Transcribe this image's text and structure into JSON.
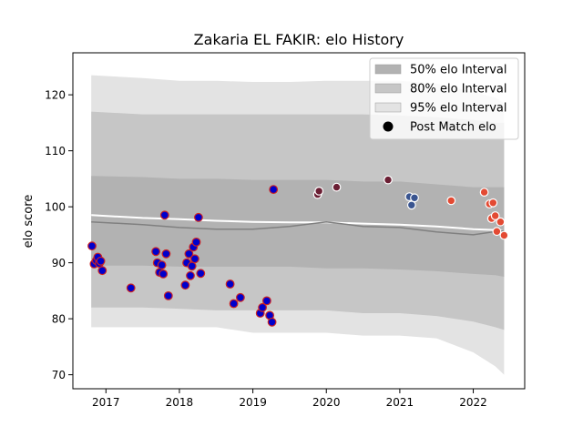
{
  "chart_data": {
    "type": "scatter",
    "title": "Zakaria EL FAKIR: elo History",
    "xlabel": "",
    "ylabel": "elo score",
    "xlim": [
      2016.55,
      2022.7
    ],
    "ylim": [
      67.5,
      127.5
    ],
    "x_ticks": [
      2017,
      2018,
      2019,
      2020,
      2021,
      2022
    ],
    "x_tick_labels": [
      "2017",
      "2018",
      "2019",
      "2020",
      "2021",
      "2022"
    ],
    "y_ticks": [
      70,
      80,
      90,
      100,
      110,
      120
    ],
    "y_tick_labels": [
      "70",
      "80",
      "90",
      "100",
      "110",
      "120"
    ],
    "grid": false,
    "legend_position": "top-right",
    "legend": [
      {
        "label": "50% elo Interval",
        "kind": "patch",
        "color": "#b2b2b2"
      },
      {
        "label": "80% elo Interval",
        "kind": "patch",
        "color": "#c6c6c6"
      },
      {
        "label": "95% elo Interval",
        "kind": "patch",
        "color": "#e3e3e3"
      },
      {
        "label": "Post Match elo",
        "kind": "marker",
        "color": "#000000"
      }
    ],
    "bands": [
      {
        "name": "95% elo Interval",
        "color": "#e3e3e3",
        "x": [
          2016.8,
          2017.5,
          2018.0,
          2018.5,
          2019.0,
          2019.5,
          2020.0,
          2020.5,
          2021.0,
          2021.5,
          2022.0,
          2022.3,
          2022.42
        ],
        "upper": [
          123.5,
          123,
          122.5,
          122.5,
          122.3,
          122.3,
          122.5,
          122.5,
          122.5,
          122,
          120.5,
          119.5,
          118.5
        ],
        "lower": [
          78.5,
          78.5,
          78.5,
          78.5,
          77.5,
          77.5,
          77.5,
          77,
          77,
          76.5,
          74,
          71.5,
          70
        ]
      },
      {
        "name": "80% elo Interval",
        "color": "#c6c6c6",
        "x": [
          2016.8,
          2017.5,
          2018.0,
          2018.5,
          2019.0,
          2019.5,
          2020.0,
          2020.5,
          2021.0,
          2021.5,
          2022.0,
          2022.3,
          2022.42
        ],
        "upper": [
          117,
          116.5,
          116.5,
          116.5,
          116.5,
          116.5,
          116.5,
          116.5,
          116.3,
          116,
          115.5,
          115,
          115
        ],
        "lower": [
          82,
          82,
          81.8,
          81.5,
          81.5,
          81.5,
          81.5,
          81,
          81,
          80.5,
          79.5,
          78.5,
          78
        ]
      },
      {
        "name": "50% elo Interval",
        "color": "#b2b2b2",
        "x": [
          2016.8,
          2017.5,
          2018.0,
          2018.5,
          2019.0,
          2019.5,
          2020.0,
          2020.5,
          2021.0,
          2021.5,
          2022.0,
          2022.3,
          2022.42
        ],
        "upper": [
          105.5,
          105.3,
          105,
          105,
          104.8,
          104.8,
          104.8,
          104.5,
          104.5,
          104,
          103.5,
          103.5,
          103.5
        ],
        "lower": [
          89.5,
          89.5,
          89.3,
          89.3,
          89.3,
          89.3,
          89,
          89,
          88.8,
          88.5,
          88,
          87.8,
          87.5
        ]
      }
    ],
    "lines": [
      {
        "color": "#ffffff",
        "width": 2,
        "x": [
          2016.8,
          2017.5,
          2018.0,
          2018.5,
          2019.0,
          2019.5,
          2020.0,
          2020.5,
          2021.0,
          2021.5,
          2022.0,
          2022.42
        ],
        "y": [
          98.5,
          98,
          97.8,
          97.5,
          97.3,
          97.2,
          97.2,
          97,
          96.8,
          96.5,
          96,
          95.8
        ]
      },
      {
        "color": "#808080",
        "width": 1.5,
        "x": [
          2016.8,
          2017.5,
          2018.0,
          2018.5,
          2019.0,
          2019.5,
          2020.0,
          2020.5,
          2021.0,
          2021.5,
          2022.0,
          2022.42
        ],
        "y": [
          97.3,
          96.8,
          96.3,
          96,
          96,
          96.5,
          97.3,
          96.5,
          96.3,
          95.5,
          95,
          95.8
        ]
      }
    ],
    "points": [
      {
        "x": 2016.81,
        "y": 93,
        "color": "#0000cc",
        "edge": "#cc2222"
      },
      {
        "x": 2016.84,
        "y": 89.8,
        "color": "#0000cc",
        "edge": "#cc2222"
      },
      {
        "x": 2016.87,
        "y": 90.4,
        "color": "#0000cc",
        "edge": "#cc2222"
      },
      {
        "x": 2016.89,
        "y": 91,
        "color": "#0000cc",
        "edge": "#cc2222"
      },
      {
        "x": 2016.91,
        "y": 89.9,
        "color": "#0000cc",
        "edge": "#cc2222"
      },
      {
        "x": 2016.93,
        "y": 90.3,
        "color": "#0000cc",
        "edge": "#cc2222"
      },
      {
        "x": 2016.95,
        "y": 88.6,
        "color": "#0000cc",
        "edge": "#cc2222"
      },
      {
        "x": 2017.34,
        "y": 85.5,
        "color": "#0000cc",
        "edge": "#cc2222"
      },
      {
        "x": 2017.68,
        "y": 92,
        "color": "#0000cc",
        "edge": "#cc2222"
      },
      {
        "x": 2017.7,
        "y": 90,
        "color": "#0000cc",
        "edge": "#cc2222"
      },
      {
        "x": 2017.73,
        "y": 88.3,
        "color": "#0000cc",
        "edge": "#cc2222"
      },
      {
        "x": 2017.76,
        "y": 89.6,
        "color": "#0000cc",
        "edge": "#cc2222"
      },
      {
        "x": 2017.78,
        "y": 88,
        "color": "#0000cc",
        "edge": "#cc2222"
      },
      {
        "x": 2017.8,
        "y": 98.5,
        "color": "#0000cc",
        "edge": "#cc2222"
      },
      {
        "x": 2017.82,
        "y": 91.6,
        "color": "#0000cc",
        "edge": "#cc2222"
      },
      {
        "x": 2017.85,
        "y": 84.1,
        "color": "#0000cc",
        "edge": "#cc2222"
      },
      {
        "x": 2018.08,
        "y": 86,
        "color": "#0000cc",
        "edge": "#cc2222"
      },
      {
        "x": 2018.1,
        "y": 90,
        "color": "#0000cc",
        "edge": "#cc2222"
      },
      {
        "x": 2018.13,
        "y": 91.6,
        "color": "#0000cc",
        "edge": "#cc2222"
      },
      {
        "x": 2018.15,
        "y": 87.7,
        "color": "#0000cc",
        "edge": "#cc2222"
      },
      {
        "x": 2018.17,
        "y": 89.4,
        "color": "#0000cc",
        "edge": "#cc2222"
      },
      {
        "x": 2018.19,
        "y": 92.8,
        "color": "#0000cc",
        "edge": "#cc2222"
      },
      {
        "x": 2018.21,
        "y": 90.7,
        "color": "#0000cc",
        "edge": "#cc2222"
      },
      {
        "x": 2018.23,
        "y": 93.7,
        "color": "#0000cc",
        "edge": "#cc2222"
      },
      {
        "x": 2018.26,
        "y": 98.1,
        "color": "#0000cc",
        "edge": "#cc2222"
      },
      {
        "x": 2018.29,
        "y": 88.1,
        "color": "#0000cc",
        "edge": "#cc2222"
      },
      {
        "x": 2018.69,
        "y": 86.2,
        "color": "#0000cc",
        "edge": "#cc2222"
      },
      {
        "x": 2018.74,
        "y": 82.7,
        "color": "#0000cc",
        "edge": "#cc2222"
      },
      {
        "x": 2018.83,
        "y": 83.8,
        "color": "#0000cc",
        "edge": "#cc2222"
      },
      {
        "x": 2019.1,
        "y": 81,
        "color": "#0000cc",
        "edge": "#cc2222"
      },
      {
        "x": 2019.13,
        "y": 82,
        "color": "#0000cc",
        "edge": "#cc2222"
      },
      {
        "x": 2019.19,
        "y": 83.2,
        "color": "#0000cc",
        "edge": "#cc2222"
      },
      {
        "x": 2019.23,
        "y": 80.6,
        "color": "#0000cc",
        "edge": "#cc2222"
      },
      {
        "x": 2019.26,
        "y": 79.4,
        "color": "#0000cc",
        "edge": "#cc2222"
      },
      {
        "x": 2019.28,
        "y": 103.1,
        "color": "#0000cc",
        "edge": "#cc2222"
      },
      {
        "x": 2019.88,
        "y": 102.2,
        "color": "#6b1f34",
        "edge": "#ffffff"
      },
      {
        "x": 2019.9,
        "y": 102.8,
        "color": "#6b1f34",
        "edge": "#ffffff"
      },
      {
        "x": 2020.14,
        "y": 103.5,
        "color": "#6b1f34",
        "edge": "#ffffff"
      },
      {
        "x": 2020.84,
        "y": 104.8,
        "color": "#6b1f34",
        "edge": "#ffffff"
      },
      {
        "x": 2021.13,
        "y": 101.8,
        "color": "#3a5590",
        "edge": "#ffffff"
      },
      {
        "x": 2021.16,
        "y": 100.3,
        "color": "#3a5590",
        "edge": "#ffffff"
      },
      {
        "x": 2021.2,
        "y": 101.6,
        "color": "#3a5590",
        "edge": "#ffffff"
      },
      {
        "x": 2021.7,
        "y": 101.1,
        "color": "#e34a33",
        "edge": "#ffffff"
      },
      {
        "x": 2022.15,
        "y": 102.6,
        "color": "#e34a33",
        "edge": "#ffffff"
      },
      {
        "x": 2022.22,
        "y": 100.5,
        "color": "#e34a33",
        "edge": "#ffffff"
      },
      {
        "x": 2022.25,
        "y": 97.9,
        "color": "#e34a33",
        "edge": "#ffffff"
      },
      {
        "x": 2022.27,
        "y": 100.7,
        "color": "#e34a33",
        "edge": "#ffffff"
      },
      {
        "x": 2022.3,
        "y": 98.4,
        "color": "#e34a33",
        "edge": "#ffffff"
      },
      {
        "x": 2022.32,
        "y": 95.6,
        "color": "#e34a33",
        "edge": "#ffffff"
      },
      {
        "x": 2022.37,
        "y": 97.3,
        "color": "#e34a33",
        "edge": "#ffffff"
      },
      {
        "x": 2022.42,
        "y": 94.9,
        "color": "#e34a33",
        "edge": "#ffffff"
      }
    ]
  }
}
